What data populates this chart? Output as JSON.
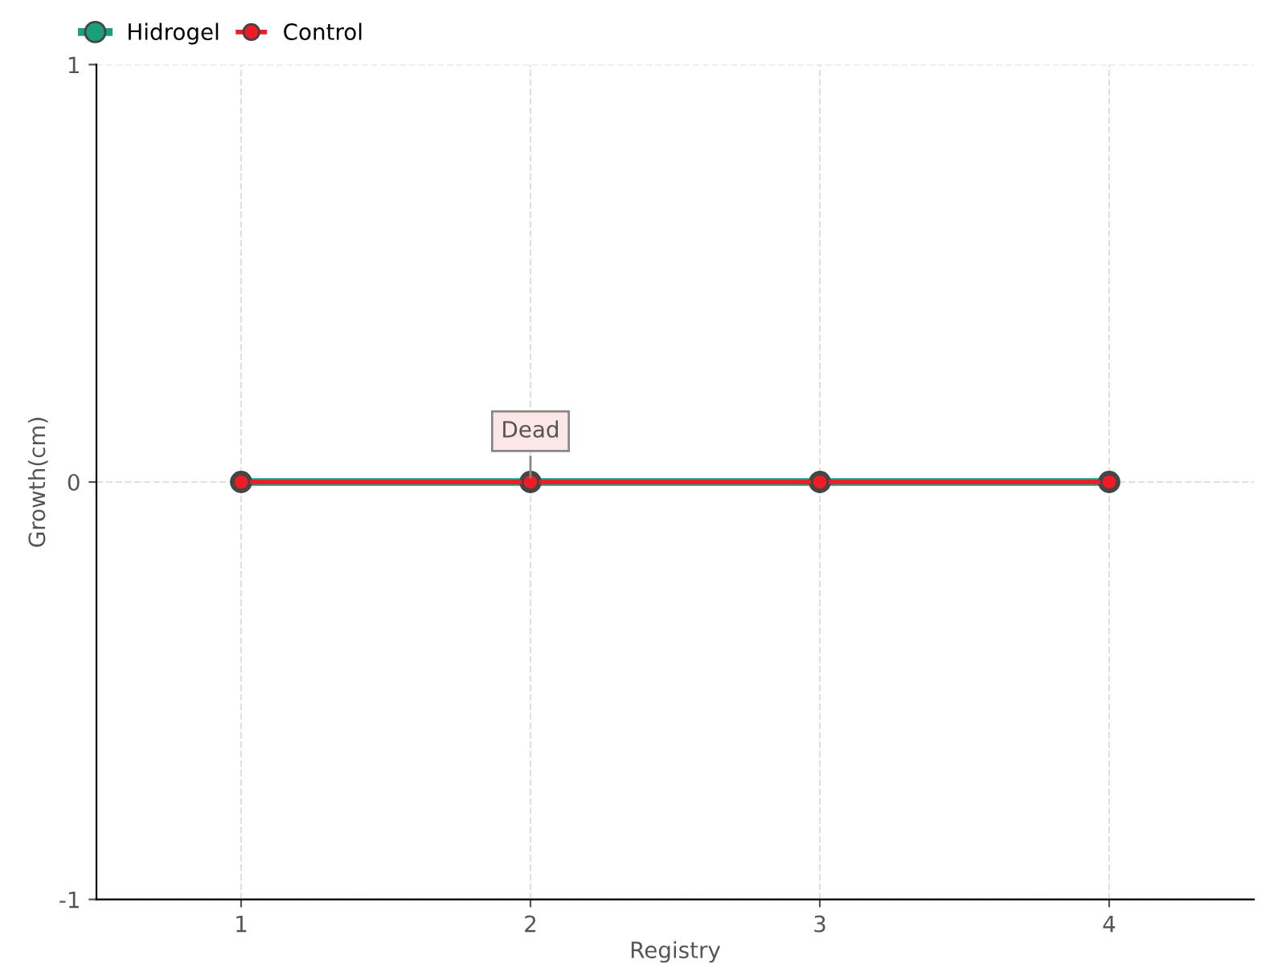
{
  "chart_data": {
    "type": "line",
    "xlabel": "Registry",
    "ylabel": "Growth(cm)",
    "x": [
      1,
      2,
      3,
      4
    ],
    "series": [
      {
        "name": "Hidrogel",
        "color": "#1a9e7e",
        "values": [
          0,
          0,
          0,
          0
        ]
      },
      {
        "name": "Control",
        "color": "#ee1c25",
        "values": [
          0,
          0,
          0,
          0
        ]
      }
    ],
    "xlim": [
      0.5,
      4.5
    ],
    "xticks": [
      1,
      2,
      3,
      4
    ],
    "ylim": [
      -1,
      1
    ],
    "yticks": [
      -1,
      0,
      1
    ],
    "grid": true,
    "legend": "top left",
    "marker": "circle",
    "line_style": "solid",
    "annotations": [
      {
        "text": "Dead",
        "x": 2,
        "y": 0
      }
    ]
  }
}
